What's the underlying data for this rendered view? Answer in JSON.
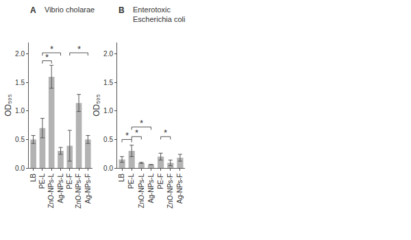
{
  "chart_data": [
    {
      "type": "bar",
      "panel": "A",
      "title": [
        "Vibrio cholarae"
      ],
      "y_label": "OD₅₉₅",
      "categories": [
        "LB",
        "PE-L",
        "ZnO-NPs-L",
        "Ag-NPs-L",
        "PE-F",
        "ZnO-NPs-F",
        "Ag-NPs-F"
      ],
      "values": [
        0.5,
        0.7,
        1.6,
        0.3,
        0.39,
        1.14,
        0.5
      ],
      "errors": [
        0.07,
        0.17,
        0.2,
        0.06,
        0.27,
        0.15,
        0.07
      ],
      "color": "#b3b3b3",
      "ylim": [
        0,
        2.2
      ],
      "yticks": [
        {
          "value": 0,
          "label": "0.0"
        },
        {
          "value": 0.5,
          "label": "0.5"
        },
        {
          "value": 1,
          "label": "1.0"
        },
        {
          "value": 1.5,
          "label": "1.5"
        },
        {
          "value": 2,
          "label": "2.0"
        }
      ],
      "grid": false,
      "significance": [
        {
          "from": "PE-L",
          "to": "ZnO-NPs-L",
          "y": 1.88,
          "label": "*"
        },
        {
          "from": "PE-L",
          "to": "Ag-NPs-L",
          "y": 2.02,
          "label": "*"
        },
        {
          "from": "PE-F",
          "to": "Ag-NPs-F",
          "y": 2.02,
          "label": "*"
        }
      ]
    },
    {
      "type": "bar",
      "panel": "B",
      "title": [
        "Enterotoxic",
        "Escherichia coli"
      ],
      "y_label": "OD₅₉₅",
      "categories": [
        "LB",
        "PE-L",
        "ZnO-NPs-L",
        "Ag-NPs-L",
        "PE-F",
        "ZnO-NPs-F",
        "Ag-NPs-F"
      ],
      "values": [
        0.15,
        0.3,
        0.09,
        0.06,
        0.2,
        0.09,
        0.18
      ],
      "errors": [
        0.05,
        0.1,
        0.01,
        0.0,
        0.06,
        0.05,
        0.06
      ],
      "color": "#b3b3b3",
      "ylim": [
        0,
        2.2
      ],
      "yticks": [
        {
          "value": 0,
          "label": "0.0"
        },
        {
          "value": 0.5,
          "label": "0.5"
        },
        {
          "value": 1,
          "label": "1.0"
        },
        {
          "value": 1.5,
          "label": "1.5"
        },
        {
          "value": 2,
          "label": "2.0"
        }
      ],
      "grid": false,
      "significance": [
        {
          "from": "LB",
          "to": "PE-L",
          "y": 0.5,
          "label": "*"
        },
        {
          "from": "PE-L",
          "to": "ZnO-NPs-L",
          "y": 0.55,
          "label": "*"
        },
        {
          "from": "PE-L",
          "to": "Ag-NPs-L",
          "y": 0.72,
          "label": "*"
        },
        {
          "from": "PE-F",
          "to": "ZnO-NPs-F",
          "y": 0.55,
          "label": "*"
        }
      ]
    }
  ]
}
